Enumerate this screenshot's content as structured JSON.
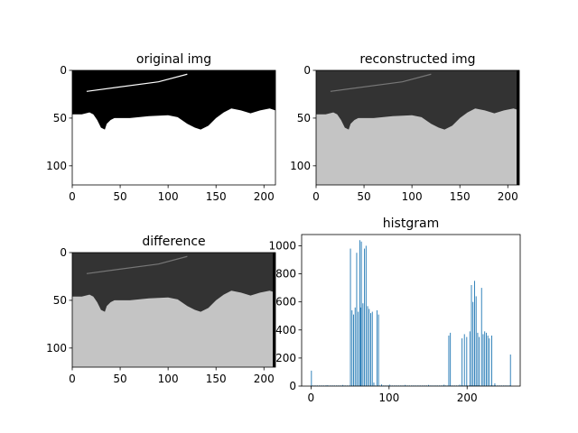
{
  "figure": {
    "background": "#ffffff"
  },
  "chart_data": [
    {
      "type": "image",
      "title": "original img",
      "image_size": [
        212,
        120
      ],
      "xlim": [
        0,
        212
      ],
      "ylim": [
        120,
        0
      ],
      "xticks": [
        0,
        50,
        100,
        150,
        200
      ],
      "yticks": [
        0,
        50,
        100
      ],
      "colors": {
        "dark": "#000000",
        "light": "#ffffff"
      },
      "boundary": [
        [
          0,
          46
        ],
        [
          10,
          46
        ],
        [
          18,
          44
        ],
        [
          22,
          46
        ],
        [
          26,
          52
        ],
        [
          30,
          60
        ],
        [
          34,
          62
        ],
        [
          36,
          56
        ],
        [
          40,
          52
        ],
        [
          44,
          50
        ],
        [
          60,
          50
        ],
        [
          80,
          48
        ],
        [
          100,
          47
        ],
        [
          110,
          49
        ],
        [
          120,
          56
        ],
        [
          128,
          60
        ],
        [
          134,
          62
        ],
        [
          142,
          58
        ],
        [
          150,
          50
        ],
        [
          158,
          44
        ],
        [
          166,
          40
        ],
        [
          176,
          42
        ],
        [
          186,
          45
        ],
        [
          196,
          42
        ],
        [
          206,
          40
        ],
        [
          212,
          42
        ]
      ]
    },
    {
      "type": "image",
      "title": "reconstructed img",
      "image_size": [
        212,
        120
      ],
      "xlim": [
        0,
        212
      ],
      "ylim": [
        120,
        0
      ],
      "xticks": [
        0,
        50,
        100,
        150,
        200
      ],
      "yticks": [
        0,
        50,
        100
      ],
      "colors": {
        "dark": "#333333",
        "light": "#c4c4c4",
        "edge": "#000000"
      },
      "boundary": [
        [
          0,
          46
        ],
        [
          10,
          46
        ],
        [
          18,
          44
        ],
        [
          22,
          46
        ],
        [
          26,
          52
        ],
        [
          30,
          60
        ],
        [
          34,
          62
        ],
        [
          36,
          56
        ],
        [
          40,
          52
        ],
        [
          44,
          50
        ],
        [
          60,
          50
        ],
        [
          80,
          48
        ],
        [
          100,
          47
        ],
        [
          110,
          49
        ],
        [
          120,
          56
        ],
        [
          128,
          60
        ],
        [
          134,
          62
        ],
        [
          142,
          58
        ],
        [
          150,
          50
        ],
        [
          158,
          44
        ],
        [
          166,
          40
        ],
        [
          176,
          42
        ],
        [
          186,
          45
        ],
        [
          196,
          42
        ],
        [
          206,
          40
        ],
        [
          212,
          42
        ]
      ]
    },
    {
      "type": "image",
      "title": "difference",
      "image_size": [
        212,
        120
      ],
      "xlim": [
        0,
        212
      ],
      "ylim": [
        120,
        0
      ],
      "xticks": [
        0,
        50,
        100,
        150,
        200
      ],
      "yticks": [
        0,
        50,
        100
      ],
      "colors": {
        "dark": "#333333",
        "light": "#c4c4c4",
        "edge": "#000000"
      },
      "boundary": [
        [
          0,
          46
        ],
        [
          10,
          46
        ],
        [
          18,
          44
        ],
        [
          22,
          46
        ],
        [
          26,
          52
        ],
        [
          30,
          60
        ],
        [
          34,
          62
        ],
        [
          36,
          56
        ],
        [
          40,
          52
        ],
        [
          44,
          50
        ],
        [
          60,
          50
        ],
        [
          80,
          48
        ],
        [
          100,
          47
        ],
        [
          110,
          49
        ],
        [
          120,
          56
        ],
        [
          128,
          60
        ],
        [
          134,
          62
        ],
        [
          142,
          58
        ],
        [
          150,
          50
        ],
        [
          158,
          44
        ],
        [
          166,
          40
        ],
        [
          176,
          42
        ],
        [
          186,
          45
        ],
        [
          196,
          42
        ],
        [
          206,
          40
        ],
        [
          212,
          42
        ]
      ]
    },
    {
      "type": "bar",
      "title": "histgram",
      "xlim": [
        -12,
        268
      ],
      "ylim": [
        0,
        1080
      ],
      "xticks": [
        0,
        100,
        200
      ],
      "yticks": [
        0,
        200,
        400,
        600,
        800,
        1000
      ],
      "color": "#1f77b4",
      "bins": [
        {
          "x": 0,
          "y": 110
        },
        {
          "x": 20,
          "y": 6
        },
        {
          "x": 40,
          "y": 8
        },
        {
          "x": 50,
          "y": 980
        },
        {
          "x": 52,
          "y": 540
        },
        {
          "x": 54,
          "y": 510
        },
        {
          "x": 56,
          "y": 560
        },
        {
          "x": 58,
          "y": 950
        },
        {
          "x": 60,
          "y": 530
        },
        {
          "x": 62,
          "y": 1040
        },
        {
          "x": 63,
          "y": 560
        },
        {
          "x": 64,
          "y": 1030
        },
        {
          "x": 66,
          "y": 590
        },
        {
          "x": 68,
          "y": 980
        },
        {
          "x": 70,
          "y": 1000
        },
        {
          "x": 72,
          "y": 570
        },
        {
          "x": 74,
          "y": 550
        },
        {
          "x": 76,
          "y": 520
        },
        {
          "x": 78,
          "y": 530
        },
        {
          "x": 80,
          "y": 25
        },
        {
          "x": 84,
          "y": 540
        },
        {
          "x": 86,
          "y": 510
        },
        {
          "x": 90,
          "y": 12
        },
        {
          "x": 100,
          "y": 10
        },
        {
          "x": 120,
          "y": 8
        },
        {
          "x": 150,
          "y": 8
        },
        {
          "x": 170,
          "y": 10
        },
        {
          "x": 176,
          "y": 360
        },
        {
          "x": 178,
          "y": 380
        },
        {
          "x": 190,
          "y": 10
        },
        {
          "x": 193,
          "y": 340
        },
        {
          "x": 196,
          "y": 370
        },
        {
          "x": 199,
          "y": 350
        },
        {
          "x": 203,
          "y": 390
        },
        {
          "x": 205,
          "y": 720
        },
        {
          "x": 207,
          "y": 600
        },
        {
          "x": 209,
          "y": 750
        },
        {
          "x": 211,
          "y": 640
        },
        {
          "x": 213,
          "y": 380
        },
        {
          "x": 215,
          "y": 350
        },
        {
          "x": 218,
          "y": 700
        },
        {
          "x": 220,
          "y": 370
        },
        {
          "x": 222,
          "y": 390
        },
        {
          "x": 224,
          "y": 380
        },
        {
          "x": 226,
          "y": 360
        },
        {
          "x": 228,
          "y": 340
        },
        {
          "x": 231,
          "y": 360
        },
        {
          "x": 235,
          "y": 20
        },
        {
          "x": 255,
          "y": 225
        }
      ]
    }
  ]
}
